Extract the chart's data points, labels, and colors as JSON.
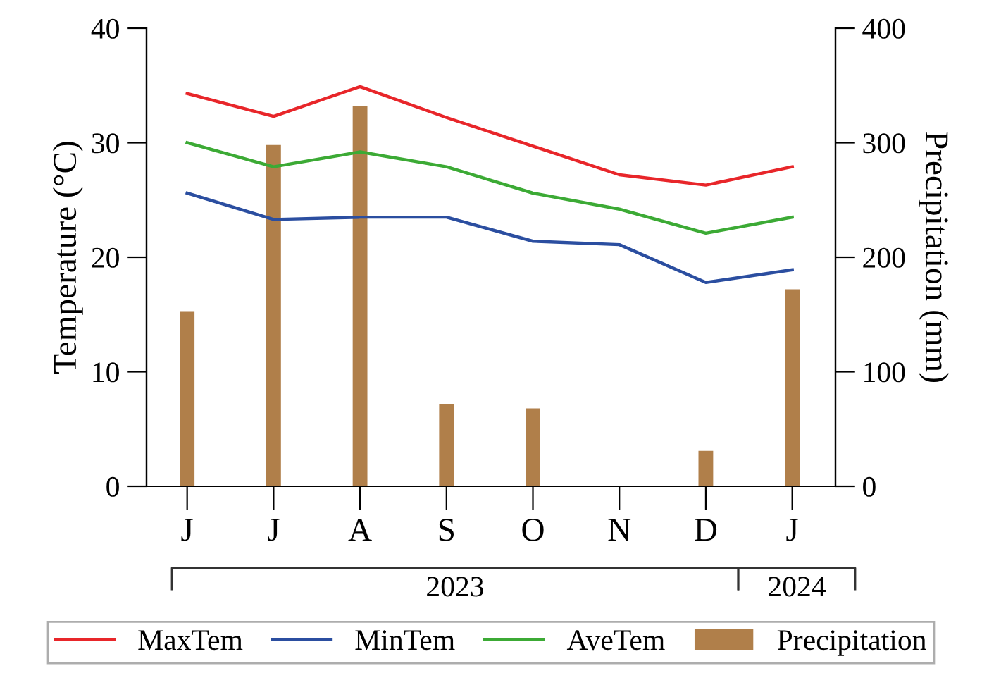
{
  "chart_data": {
    "type": "line",
    "ylabel": "Temperature (°C)",
    "y2label": "Precipitation (mm)",
    "categories": [
      "J",
      "J",
      "A",
      "S",
      "O",
      "N",
      "D",
      "J"
    ],
    "series": [
      {
        "name": "MaxTem",
        "color": "#e8262a",
        "values": [
          34.3,
          32.3,
          34.9,
          32.2,
          29.7,
          27.2,
          26.3,
          27.9
        ]
      },
      {
        "name": "MinTem",
        "color": "#2b4ea0",
        "values": [
          25.6,
          23.3,
          23.5,
          23.5,
          21.4,
          21.1,
          17.8,
          18.9
        ]
      },
      {
        "name": "AveTem",
        "color": "#3caa35",
        "values": [
          30.0,
          27.9,
          29.2,
          27.9,
          25.6,
          24.2,
          22.1,
          23.5
        ]
      },
      {
        "name": "Precipitation",
        "type": "bar",
        "axis": "y2",
        "color": "#b07f4a",
        "values": [
          153,
          298,
          332,
          72,
          68,
          null,
          31,
          172
        ]
      }
    ],
    "ylim": [
      0,
      40
    ],
    "yticks": [
      0,
      10,
      20,
      30,
      40
    ],
    "y2lim": [
      0,
      400
    ],
    "y2ticks": [
      0,
      100,
      200,
      300,
      400
    ],
    "annotations": [
      "2023",
      "2024"
    ],
    "grid": false,
    "legend": "bottom",
    "marker": "none",
    "line_style": "solid"
  }
}
